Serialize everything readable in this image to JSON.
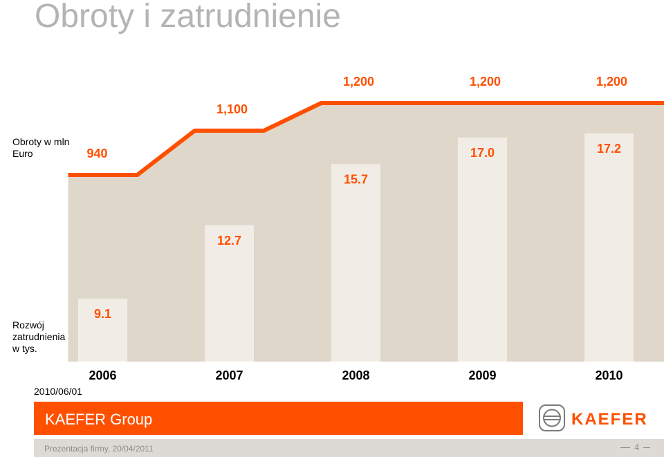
{
  "title": "Obroty i zatrudnienie",
  "labels": {
    "revenue": [
      "Obroty w mln",
      "Euro"
    ],
    "employment": [
      "Rozwój",
      "zatrudnienia",
      "w tys."
    ]
  },
  "date": "2010/06/01",
  "brand_bar": "KAEFER Group",
  "logo_text": "KAEFER",
  "footer": {
    "text": "Prezentacja firmy, 20/04/2011",
    "page": "4"
  },
  "colors": {
    "accent": "#ff5000",
    "area": "#dfd8ca",
    "bar": "#f1ede6",
    "title": "#b4b4b4"
  },
  "chart_data": {
    "type": "bar",
    "categories": [
      "2006",
      "2007",
      "2008",
      "2009",
      "2010"
    ],
    "series": [
      {
        "name": "Obroty w mln Euro",
        "type": "line",
        "values": [
          940,
          1100,
          1200,
          1200,
          1200
        ],
        "labels": [
          "940",
          "1,100",
          "1,200",
          "1,200",
          "1,200"
        ]
      },
      {
        "name": "Rozwój zatrudnienia w tys.",
        "type": "bar",
        "values": [
          9.1,
          12.7,
          15.7,
          17.0,
          17.2
        ],
        "labels": [
          "9.1",
          "12.7",
          "15.7",
          "17.0",
          "17.2"
        ]
      }
    ]
  }
}
